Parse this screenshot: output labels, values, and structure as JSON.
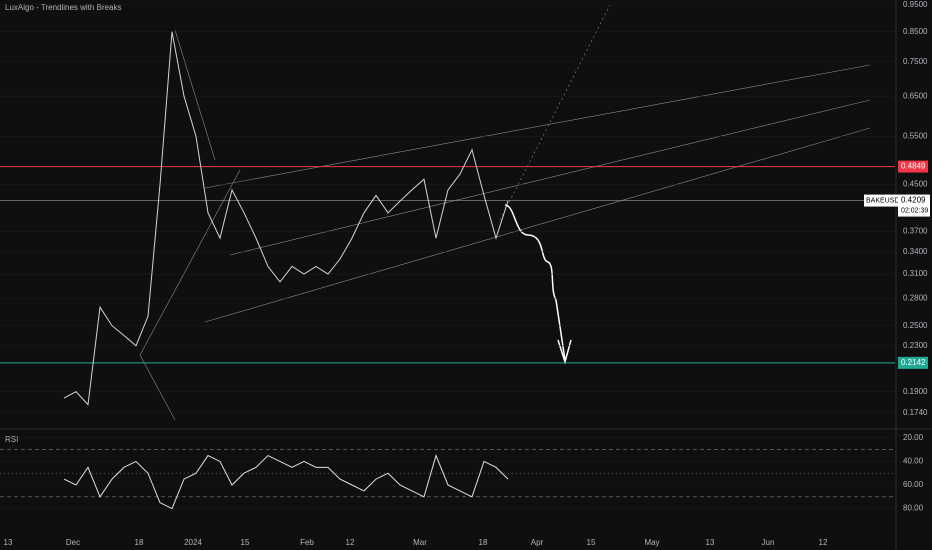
{
  "chart_data": [
    {
      "type": "line",
      "title": "LuxAlgo - Trendlines with Breaks",
      "log_scale": true,
      "ylim": [
        0.97,
        0.164
      ],
      "yticks": [
        {
          "value": 0.95,
          "label": "0.9500"
        },
        {
          "value": 0.85,
          "label": "0.8500"
        },
        {
          "value": 0.75,
          "label": "0.7500"
        },
        {
          "value": 0.65,
          "label": "0.6500"
        },
        {
          "value": 0.55,
          "label": "0.5500"
        },
        {
          "value": 0.45,
          "label": "0.4500"
        },
        {
          "value": 0.37,
          "label": "0.3700"
        },
        {
          "value": 0.34,
          "label": "0.3400"
        },
        {
          "value": 0.31,
          "label": "0.3100"
        },
        {
          "value": 0.28,
          "label": "0.2800"
        },
        {
          "value": 0.25,
          "label": "0.2500"
        },
        {
          "value": 0.23,
          "label": "0.2300"
        },
        {
          "value": 0.19,
          "label": "0.1900"
        },
        {
          "value": 0.174,
          "label": "0.1740"
        }
      ],
      "series": [
        {
          "name": "BAKEUSDT",
          "color": "#d1d4dc",
          "values": [
            0.185,
            0.19,
            0.18,
            0.27,
            0.25,
            0.24,
            0.23,
            0.26,
            0.45,
            0.85,
            0.65,
            0.55,
            0.4,
            0.36,
            0.44,
            0.4,
            0.36,
            0.32,
            0.3,
            0.32,
            0.31,
            0.32,
            0.31,
            0.33,
            0.36,
            0.4,
            0.43,
            0.4,
            0.42,
            0.44,
            0.46,
            0.36,
            0.44,
            0.47,
            0.52,
            0.43,
            0.36,
            0.42
          ]
        }
      ],
      "levels": [
        {
          "value": 0.4849,
          "color": "#f23645"
        },
        {
          "value": 0.2142,
          "color": "#22ab94"
        }
      ],
      "last": {
        "value": 0.4209,
        "countdown": "02:02:39"
      },
      "xtick_labels": [
        "13",
        "Dec",
        "18",
        "2024",
        "15",
        "Feb",
        "12",
        "Mar",
        "18",
        "Apr",
        "15",
        "May",
        "13",
        "Jun",
        "12"
      ]
    },
    {
      "type": "line",
      "title": "RSI",
      "ylim": [
        15,
        105
      ],
      "yticks": [
        {
          "value": 80,
          "label": "80.00"
        },
        {
          "value": 60,
          "label": "60.00"
        },
        {
          "value": 40,
          "label": "40.00"
        },
        {
          "value": 20,
          "label": "20.00"
        }
      ],
      "levels": [
        30,
        50,
        70
      ],
      "series": [
        {
          "color": "#e0e0e0",
          "values": [
            55,
            60,
            45,
            70,
            55,
            45,
            40,
            50,
            75,
            80,
            55,
            50,
            35,
            40,
            60,
            50,
            45,
            35,
            40,
            45,
            40,
            45,
            45,
            55,
            60,
            65,
            55,
            50,
            60,
            65,
            70,
            35,
            60,
            65,
            70,
            40,
            45,
            55
          ]
        }
      ]
    }
  ]
}
